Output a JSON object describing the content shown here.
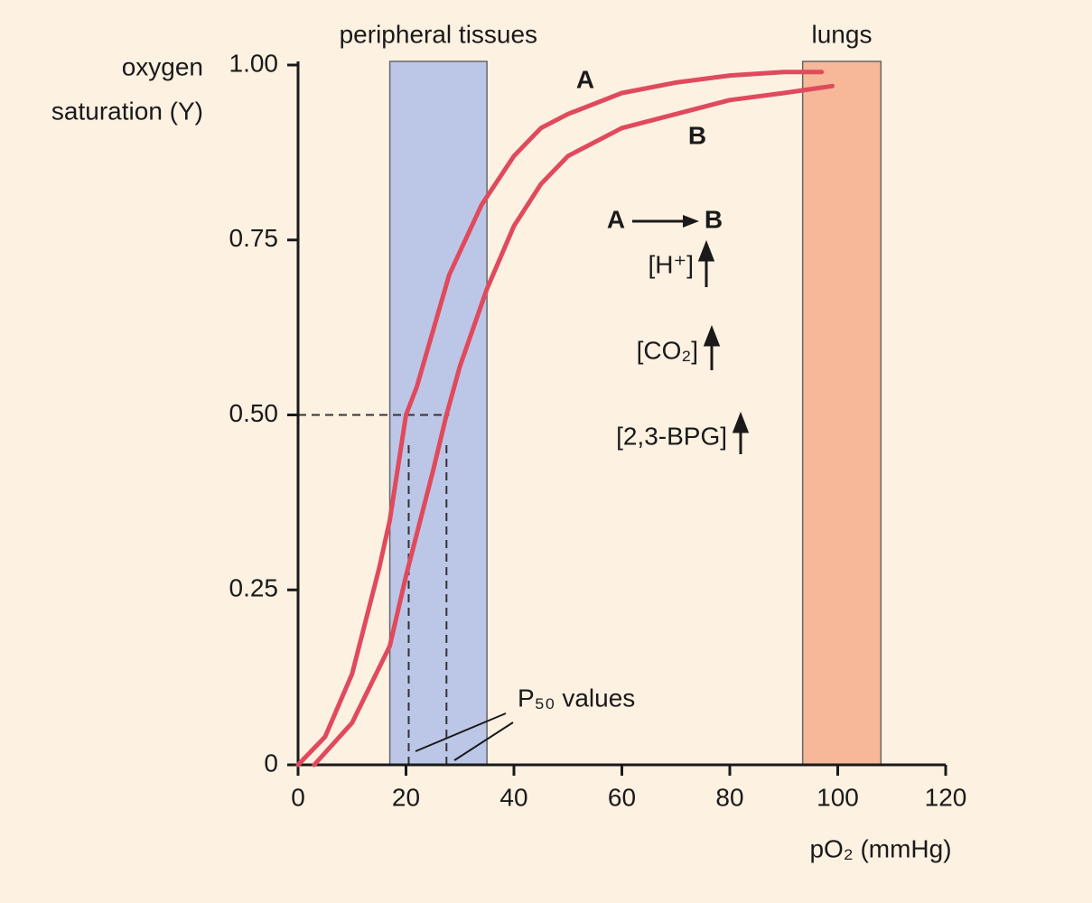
{
  "chart_data": {
    "type": "line",
    "ylabel": [
      "oxygen",
      "saturation (Y)"
    ],
    "xlabel": "pO₂ (mmHg)",
    "xlim": [
      0,
      120
    ],
    "ylim": [
      0,
      1
    ],
    "xticks": [
      0,
      20,
      40,
      60,
      80,
      100,
      120
    ],
    "yticks": [
      0,
      0.25,
      {
        "value": 0.5,
        "label": "0.50"
      },
      0.75,
      {
        "value": 1,
        "label": "1.00"
      }
    ],
    "regions": [
      {
        "label": "peripheral tissues",
        "x": [
          17,
          35
        ],
        "color": "#bcc7e8"
      },
      {
        "label": "lungs",
        "x": [
          93.5,
          108
        ],
        "color": "#f6b899"
      }
    ],
    "series": [
      {
        "name": "A",
        "color": "#e04a5c",
        "x": [
          0,
          5,
          10,
          15,
          17,
          20,
          22,
          28,
          34,
          40,
          45,
          50,
          60,
          70,
          80,
          90,
          97
        ],
        "values": [
          0,
          0.04,
          0.13,
          0.28,
          0.35,
          0.5,
          0.54,
          0.7,
          0.8,
          0.87,
          0.91,
          0.93,
          0.96,
          0.975,
          0.985,
          0.99,
          0.99
        ]
      },
      {
        "name": "B",
        "color": "#e04a5c",
        "x": [
          3,
          10,
          17,
          20,
          25,
          27.5,
          30,
          35,
          40,
          45,
          50,
          60,
          70,
          80,
          90,
          99
        ],
        "values": [
          0,
          0.06,
          0.17,
          0.27,
          0.42,
          0.5,
          0.57,
          0.68,
          0.77,
          0.83,
          0.87,
          0.91,
          0.93,
          0.95,
          0.96,
          0.97
        ]
      }
    ],
    "p50_level": 0.5,
    "p50": [
      20.5,
      27.5
    ],
    "p50_label": "P₅₀ values",
    "effectors": [
      "[H⁺]",
      "[CO₂]",
      "[2,3-BPG]"
    ]
  }
}
